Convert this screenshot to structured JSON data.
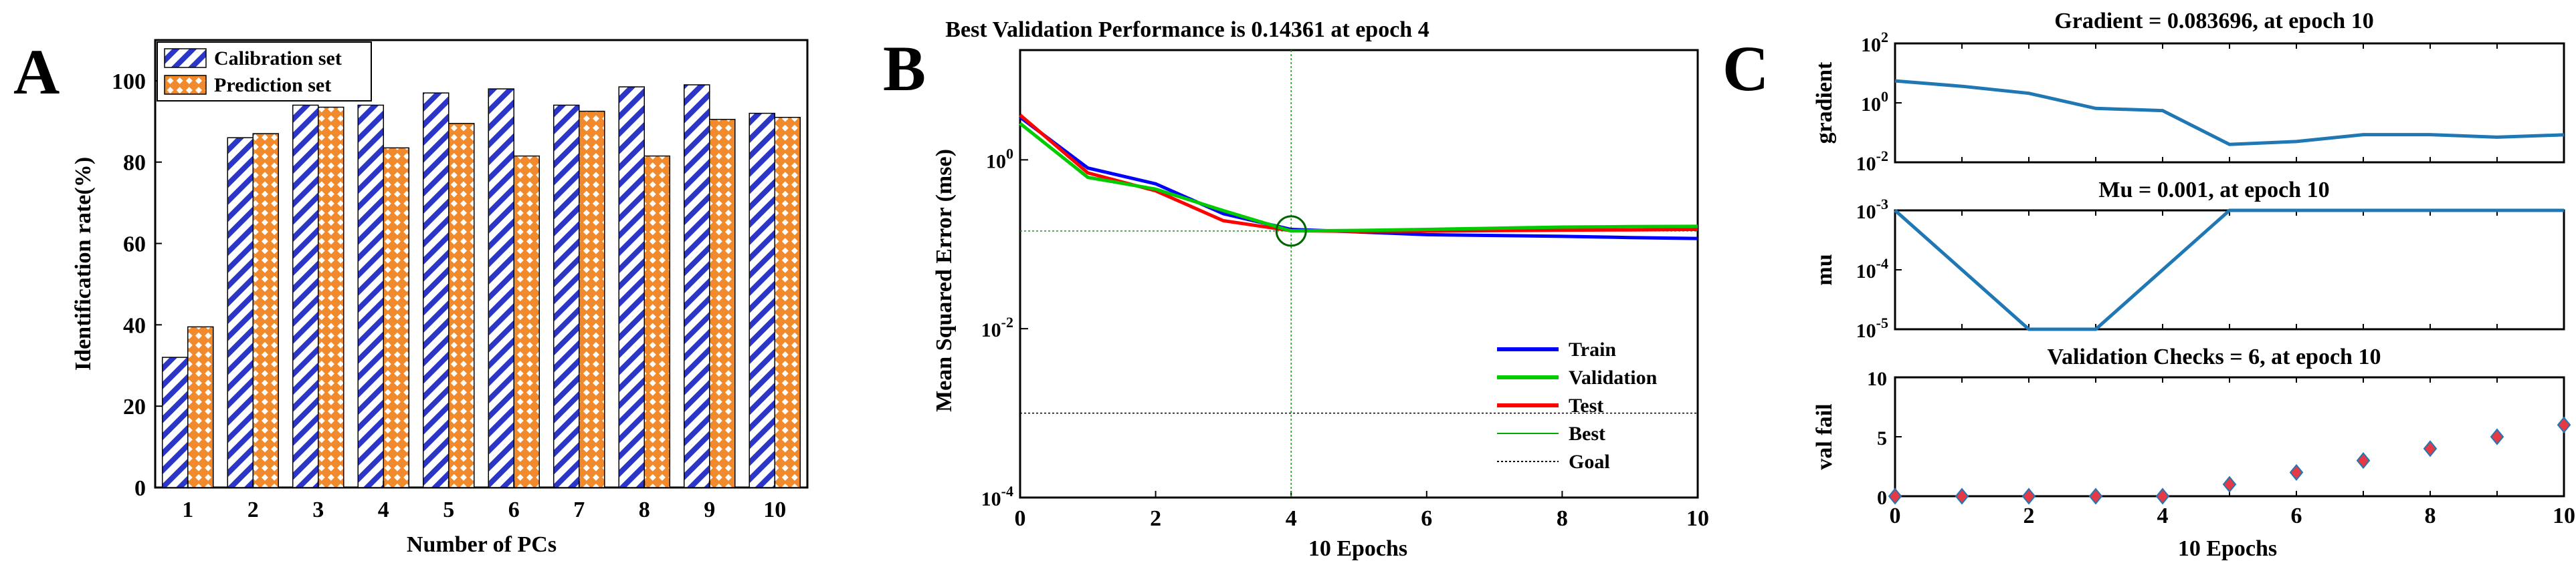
{
  "chart_data": [
    {
      "panel": "A",
      "type": "bar",
      "title": "",
      "xlabel": "Number of PCs",
      "ylabel": "Identification rate(%)",
      "categories": [
        "1",
        "2",
        "3",
        "4",
        "5",
        "6",
        "7",
        "8",
        "9",
        "10"
      ],
      "series": [
        {
          "name": "Calibration set",
          "values": [
            32,
            86,
            94,
            94,
            97,
            98,
            94,
            98.5,
            99,
            92
          ]
        },
        {
          "name": "Prediction set",
          "values": [
            39.5,
            87,
            93.5,
            83.5,
            89.5,
            81.5,
            92.5,
            81.5,
            90.5,
            91
          ]
        }
      ],
      "ylim": [
        0,
        110
      ],
      "yticks": [
        "0",
        "20",
        "40",
        "60",
        "80",
        "100"
      ],
      "legend": "top-left",
      "colors": {
        "calibration": "#2b35c6",
        "prediction": "#f08a2c"
      }
    },
    {
      "panel": "B",
      "type": "line",
      "title": "Best Validation Performance is 0.14361 at epoch 4",
      "xlabel": "10 Epochs",
      "ylabel": "Mean Squared Error  (mse)",
      "yscale": "log",
      "xlim": [
        0,
        10
      ],
      "ylim_exp": [
        -4,
        1.3
      ],
      "xticks": [
        "0",
        "2",
        "4",
        "6",
        "8",
        "10"
      ],
      "yticks": [
        {
          "base": "10",
          "exp": "-4",
          "value": -4
        },
        {
          "base": "10",
          "exp": "-2",
          "value": -2
        },
        {
          "base": "10",
          "exp": "0",
          "value": 0
        }
      ],
      "x": [
        0,
        1,
        2,
        3,
        4,
        5,
        6,
        7,
        8,
        9,
        10
      ],
      "series": [
        {
          "name": "Train",
          "color": "#0000ff",
          "values": [
            3.2,
            0.8,
            0.52,
            0.23,
            0.15,
            0.14,
            0.13,
            0.127,
            0.124,
            0.12,
            0.117
          ]
        },
        {
          "name": "Validation",
          "color": "#00cc00",
          "values": [
            2.7,
            0.62,
            0.45,
            0.25,
            0.14361,
            0.146,
            0.15,
            0.155,
            0.16,
            0.162,
            0.163
          ]
        },
        {
          "name": "Test",
          "color": "#ff0000",
          "values": [
            3.4,
            0.7,
            0.43,
            0.19,
            0.145,
            0.142,
            0.143,
            0.145,
            0.147,
            0.148,
            0.15
          ]
        }
      ],
      "best": {
        "epoch": 4,
        "value": 0.14361,
        "label": "Best"
      },
      "goal": {
        "value": 0.001,
        "label": "Goal"
      },
      "legend": "bottom-right"
    },
    {
      "panel": "C",
      "type": "line",
      "subplots": [
        {
          "title": "Gradient = 0.083696, at epoch 10",
          "ylabel": "gradient",
          "yscale": "log",
          "yticks": [
            {
              "base": "10",
              "exp": "-2",
              "value": -2
            },
            {
              "base": "10",
              "exp": "0",
              "value": 0
            },
            {
              "base": "10",
              "exp": "2",
              "value": 2
            }
          ],
          "ylim_exp": [
            -2,
            2
          ],
          "x": [
            0,
            1,
            2,
            3,
            4,
            5,
            6,
            7,
            8,
            9,
            10
          ],
          "values": [
            5.5,
            3.6,
            2.1,
            0.65,
            0.55,
            0.04,
            0.05,
            0.085,
            0.085,
            0.07,
            0.083696
          ]
        },
        {
          "title": "Mu = 0.001, at epoch 10",
          "ylabel": "mu",
          "yscale": "log",
          "yticks": [
            {
              "base": "10",
              "exp": "-5",
              "value": -5
            },
            {
              "base": "10",
              "exp": "-4",
              "value": -4
            },
            {
              "base": "10",
              "exp": "-3",
              "value": -3
            }
          ],
          "ylim_exp": [
            -5,
            -3
          ],
          "x": [
            0,
            1,
            2,
            3,
            4,
            5,
            6,
            7,
            8,
            9,
            10
          ],
          "values": [
            0.001,
            0.0001,
            1e-05,
            1e-05,
            0.0001,
            0.001,
            0.001,
            0.001,
            0.001,
            0.001,
            0.001
          ]
        },
        {
          "title": "Validation Checks = 6, at epoch 10",
          "ylabel": "val fail",
          "yscale": "linear",
          "yticks": [
            "0",
            "5",
            "10"
          ],
          "ylim": [
            0,
            10
          ],
          "x": [
            0,
            1,
            2,
            3,
            4,
            5,
            6,
            7,
            8,
            9,
            10
          ],
          "values": [
            0,
            0,
            0,
            0,
            0,
            1,
            2,
            3,
            4,
            5,
            6
          ]
        }
      ],
      "xlabel": "10 Epochs",
      "xticks": [
        "0",
        "2",
        "4",
        "6",
        "8",
        "10"
      ]
    }
  ],
  "labels": {
    "a": "A",
    "b": "B",
    "c": "C"
  },
  "legend_b": {
    "train": "Train",
    "validation": "Validation",
    "test": "Test",
    "best": "Best",
    "goal": "Goal"
  },
  "colors": {
    "line_blue": "#1f77b4",
    "marker_fill": "#e63946",
    "marker_edge": "#1f77b4",
    "best_circle": "#006400"
  }
}
